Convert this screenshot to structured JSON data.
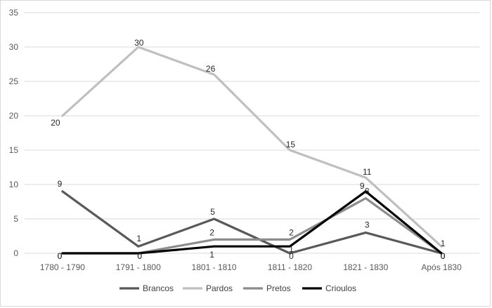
{
  "chart_data": {
    "type": "line",
    "categories": [
      "1780 - 1790",
      "1791 - 1800",
      "1801 - 1810",
      "1811 - 1820",
      "1821 - 1830",
      "Após 1830"
    ],
    "ylim": [
      0,
      35
    ],
    "yticks": [
      0,
      5,
      10,
      15,
      20,
      25,
      30,
      35
    ],
    "grid": true,
    "legend": "bottom",
    "series": [
      {
        "name": "Brancos",
        "color": "#595959",
        "values": [
          9,
          1,
          5,
          0,
          3,
          0
        ]
      },
      {
        "name": "Pardos",
        "color": "#bfbfbf",
        "values": [
          20,
          30,
          26,
          15,
          11,
          1
        ]
      },
      {
        "name": "Pretos",
        "color": "#8c8c8c",
        "values": [
          0,
          0,
          2,
          2,
          8,
          0
        ]
      },
      {
        "name": "Crioulos",
        "color": "#000000",
        "values": [
          0,
          0,
          1,
          1,
          9,
          0
        ]
      }
    ]
  }
}
